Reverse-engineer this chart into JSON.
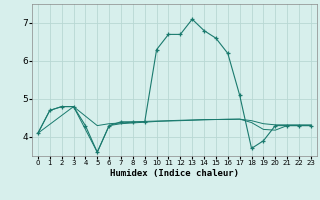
{
  "title": "",
  "xlabel": "Humidex (Indice chaleur)",
  "background_color": "#d7efec",
  "grid_color": "#b8d8d4",
  "line_color": "#1a7a6e",
  "xlim": [
    -0.5,
    23.5
  ],
  "ylim": [
    3.5,
    7.5
  ],
  "yticks": [
    4,
    5,
    6,
    7
  ],
  "xticks": [
    0,
    1,
    2,
    3,
    4,
    5,
    6,
    7,
    8,
    9,
    10,
    11,
    12,
    13,
    14,
    15,
    16,
    17,
    18,
    19,
    20,
    21,
    22,
    23
  ],
  "series": {
    "line1_x": [
      0,
      1,
      2,
      3,
      4,
      5,
      6,
      7,
      8,
      9,
      10,
      11,
      12,
      13,
      14,
      15,
      16,
      17,
      18,
      19,
      20,
      21,
      22,
      23
    ],
    "line1_y": [
      4.1,
      4.7,
      4.8,
      4.8,
      4.3,
      3.6,
      4.3,
      4.4,
      4.4,
      4.4,
      6.3,
      6.7,
      6.7,
      7.1,
      6.8,
      6.6,
      6.2,
      5.1,
      3.7,
      3.9,
      4.3,
      4.3,
      4.3,
      4.3
    ],
    "line2_x": [
      0,
      1,
      2,
      3,
      5,
      6,
      7,
      8,
      9,
      10,
      11,
      12,
      13,
      14,
      15,
      16,
      17,
      18,
      19,
      20,
      21,
      22,
      23
    ],
    "line2_y": [
      4.1,
      4.7,
      4.8,
      4.8,
      4.3,
      4.35,
      4.37,
      4.39,
      4.41,
      4.42,
      4.43,
      4.44,
      4.45,
      4.46,
      4.46,
      4.47,
      4.47,
      4.43,
      4.35,
      4.32,
      4.32,
      4.32,
      4.32
    ],
    "line3_x": [
      0,
      3,
      5,
      6,
      7,
      8,
      9,
      10,
      11,
      12,
      13,
      14,
      15,
      16,
      17,
      18,
      19,
      20,
      21,
      22,
      23
    ],
    "line3_y": [
      4.1,
      4.8,
      3.6,
      4.3,
      4.35,
      4.37,
      4.39,
      4.41,
      4.42,
      4.43,
      4.44,
      4.45,
      4.46,
      4.46,
      4.47,
      4.38,
      4.2,
      4.18,
      4.3,
      4.3,
      4.3
    ]
  }
}
